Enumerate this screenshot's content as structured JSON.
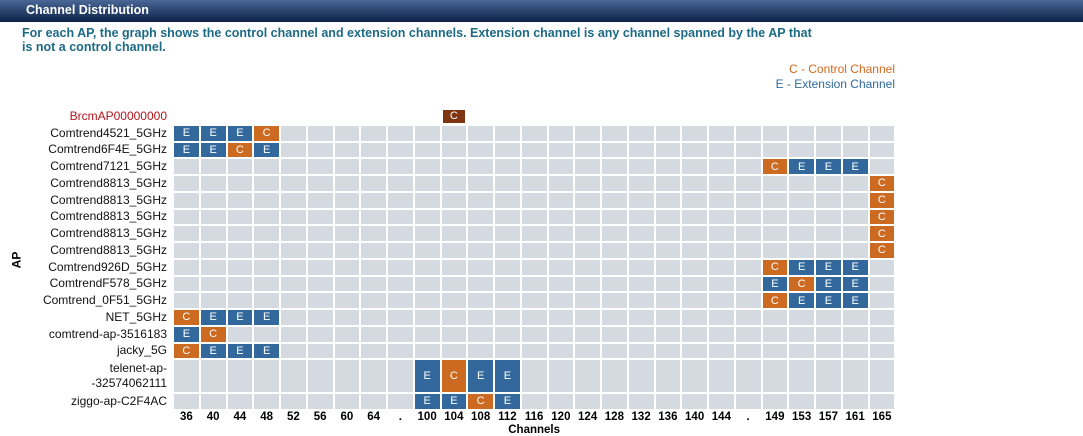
{
  "header": {
    "title": "Channel Distribution"
  },
  "description": [
    "For each AP, the graph shows the control channel and extension channels. Extension channel is any channel spanned by the AP that",
    "is not a control channel."
  ],
  "legend": [
    {
      "text": "C - Control Channel",
      "color": "#d2691e"
    },
    {
      "text": "E - Extension Channel",
      "color": "#2f6a9e"
    }
  ],
  "y_axis_label": "AP",
  "x_axis_label": "Channels",
  "channels": [
    "36",
    "40",
    "44",
    "48",
    "52",
    "56",
    "60",
    "64",
    ".",
    "100",
    "104",
    "108",
    "112",
    "116",
    "120",
    "124",
    "128",
    "132",
    "136",
    "140",
    "144",
    ".",
    "149",
    "153",
    "157",
    "161",
    "165"
  ],
  "mark_colors": {
    "C": "#cc6a22",
    "E": "#33689c"
  },
  "rows": [
    {
      "label": "BrcmAP00000000",
      "label_color": "#b3161b",
      "mark_color": "#7e3512",
      "shaded": false,
      "cells": [
        null,
        null,
        null,
        null,
        null,
        null,
        null,
        null,
        null,
        null,
        "C",
        null,
        null,
        null,
        null,
        null,
        null,
        null,
        null,
        null,
        null,
        null,
        null,
        null,
        null,
        null,
        null
      ]
    },
    {
      "label": "Comtrend4521_5GHz",
      "cells": [
        "E",
        "E",
        "E",
        "C",
        null,
        null,
        null,
        null,
        null,
        null,
        null,
        null,
        null,
        null,
        null,
        null,
        null,
        null,
        null,
        null,
        null,
        null,
        null,
        null,
        null,
        null,
        null
      ]
    },
    {
      "label": "Comtrend6F4E_5GHz",
      "cells": [
        "E",
        "E",
        "C",
        "E",
        null,
        null,
        null,
        null,
        null,
        null,
        null,
        null,
        null,
        null,
        null,
        null,
        null,
        null,
        null,
        null,
        null,
        null,
        null,
        null,
        null,
        null,
        null
      ]
    },
    {
      "label": "Comtrend7121_5GHz",
      "cells": [
        null,
        null,
        null,
        null,
        null,
        null,
        null,
        null,
        null,
        null,
        null,
        null,
        null,
        null,
        null,
        null,
        null,
        null,
        null,
        null,
        null,
        null,
        "C",
        "E",
        "E",
        "E",
        null
      ]
    },
    {
      "label": "Comtrend8813_5GHz",
      "cells": [
        null,
        null,
        null,
        null,
        null,
        null,
        null,
        null,
        null,
        null,
        null,
        null,
        null,
        null,
        null,
        null,
        null,
        null,
        null,
        null,
        null,
        null,
        null,
        null,
        null,
        null,
        "C"
      ]
    },
    {
      "label": "Comtrend8813_5GHz",
      "cells": [
        null,
        null,
        null,
        null,
        null,
        null,
        null,
        null,
        null,
        null,
        null,
        null,
        null,
        null,
        null,
        null,
        null,
        null,
        null,
        null,
        null,
        null,
        null,
        null,
        null,
        null,
        "C"
      ]
    },
    {
      "label": "Comtrend8813_5GHz",
      "cells": [
        null,
        null,
        null,
        null,
        null,
        null,
        null,
        null,
        null,
        null,
        null,
        null,
        null,
        null,
        null,
        null,
        null,
        null,
        null,
        null,
        null,
        null,
        null,
        null,
        null,
        null,
        "C"
      ]
    },
    {
      "label": "Comtrend8813_5GHz",
      "cells": [
        null,
        null,
        null,
        null,
        null,
        null,
        null,
        null,
        null,
        null,
        null,
        null,
        null,
        null,
        null,
        null,
        null,
        null,
        null,
        null,
        null,
        null,
        null,
        null,
        null,
        null,
        "C"
      ]
    },
    {
      "label": "Comtrend8813_5GHz",
      "cells": [
        null,
        null,
        null,
        null,
        null,
        null,
        null,
        null,
        null,
        null,
        null,
        null,
        null,
        null,
        null,
        null,
        null,
        null,
        null,
        null,
        null,
        null,
        null,
        null,
        null,
        null,
        "C"
      ]
    },
    {
      "label": "Comtrend926D_5GHz",
      "cells": [
        null,
        null,
        null,
        null,
        null,
        null,
        null,
        null,
        null,
        null,
        null,
        null,
        null,
        null,
        null,
        null,
        null,
        null,
        null,
        null,
        null,
        null,
        "C",
        "E",
        "E",
        "E",
        null
      ]
    },
    {
      "label": "ComtrendF578_5GHz",
      "cells": [
        null,
        null,
        null,
        null,
        null,
        null,
        null,
        null,
        null,
        null,
        null,
        null,
        null,
        null,
        null,
        null,
        null,
        null,
        null,
        null,
        null,
        null,
        "E",
        "C",
        "E",
        "E",
        null
      ]
    },
    {
      "label": "Comtrend_0F51_5GHz",
      "cells": [
        null,
        null,
        null,
        null,
        null,
        null,
        null,
        null,
        null,
        null,
        null,
        null,
        null,
        null,
        null,
        null,
        null,
        null,
        null,
        null,
        null,
        null,
        "C",
        "E",
        "E",
        "E",
        null
      ]
    },
    {
      "label": "NET_5GHz",
      "cells": [
        "C",
        "E",
        "E",
        "E",
        null,
        null,
        null,
        null,
        null,
        null,
        null,
        null,
        null,
        null,
        null,
        null,
        null,
        null,
        null,
        null,
        null,
        null,
        null,
        null,
        null,
        null,
        null
      ]
    },
    {
      "label": "comtrend-ap-3516183",
      "cells": [
        "E",
        "C",
        null,
        null,
        null,
        null,
        null,
        null,
        null,
        null,
        null,
        null,
        null,
        null,
        null,
        null,
        null,
        null,
        null,
        null,
        null,
        null,
        null,
        null,
        null,
        null,
        null
      ]
    },
    {
      "label": "jacky_5G",
      "cells": [
        "C",
        "E",
        "E",
        "E",
        null,
        null,
        null,
        null,
        null,
        null,
        null,
        null,
        null,
        null,
        null,
        null,
        null,
        null,
        null,
        null,
        null,
        null,
        null,
        null,
        null,
        null,
        null
      ]
    },
    {
      "label": "telenet-ap-\n-32574062111",
      "cells": [
        null,
        null,
        null,
        null,
        null,
        null,
        null,
        null,
        null,
        "E",
        "C",
        "E",
        "E",
        null,
        null,
        null,
        null,
        null,
        null,
        null,
        null,
        null,
        null,
        null,
        null,
        null,
        null
      ]
    },
    {
      "label": "ziggo-ap-C2F4AC",
      "cells": [
        null,
        null,
        null,
        null,
        null,
        null,
        null,
        null,
        null,
        "E",
        "E",
        "C",
        "E",
        null,
        null,
        null,
        null,
        null,
        null,
        null,
        null,
        null,
        null,
        null,
        null,
        null,
        null
      ]
    }
  ]
}
